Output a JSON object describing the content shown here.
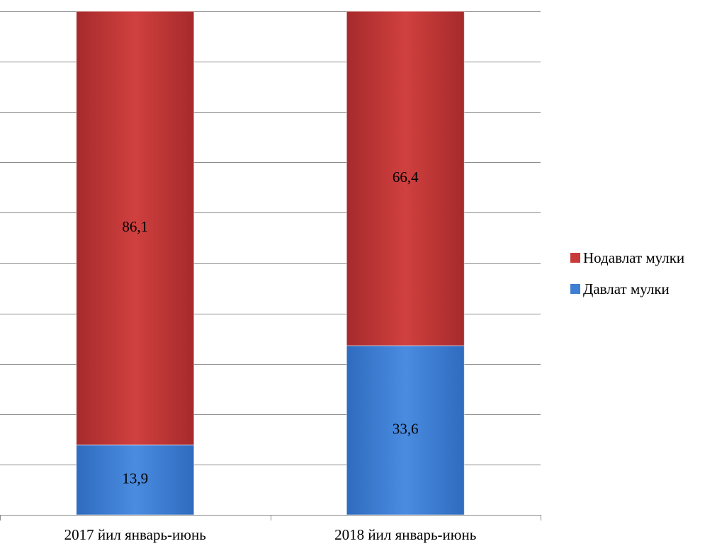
{
  "chart_data": {
    "type": "bar",
    "stacked": true,
    "percent_stacked": true,
    "categories": [
      "2017 йил январь-июнь",
      "2018 йил январь-июнь"
    ],
    "series": [
      {
        "name": "Давлат мулки",
        "values": [
          13.9,
          33.6
        ],
        "labels": [
          "13,9",
          "33,6"
        ],
        "color": "#3f7fd3"
      },
      {
        "name": "Нодавлат мулки",
        "values": [
          86.1,
          66.4
        ],
        "labels": [
          "86,1",
          "66,4"
        ],
        "color": "#c8393a"
      }
    ],
    "ylim": [
      0,
      100
    ],
    "grid": true,
    "legend_position": "right"
  },
  "legend": {
    "items": [
      {
        "label": "Нодавлат мулки",
        "color": "#c8393a"
      },
      {
        "label": "Давлат мулки",
        "color": "#3f7fd3"
      }
    ]
  }
}
